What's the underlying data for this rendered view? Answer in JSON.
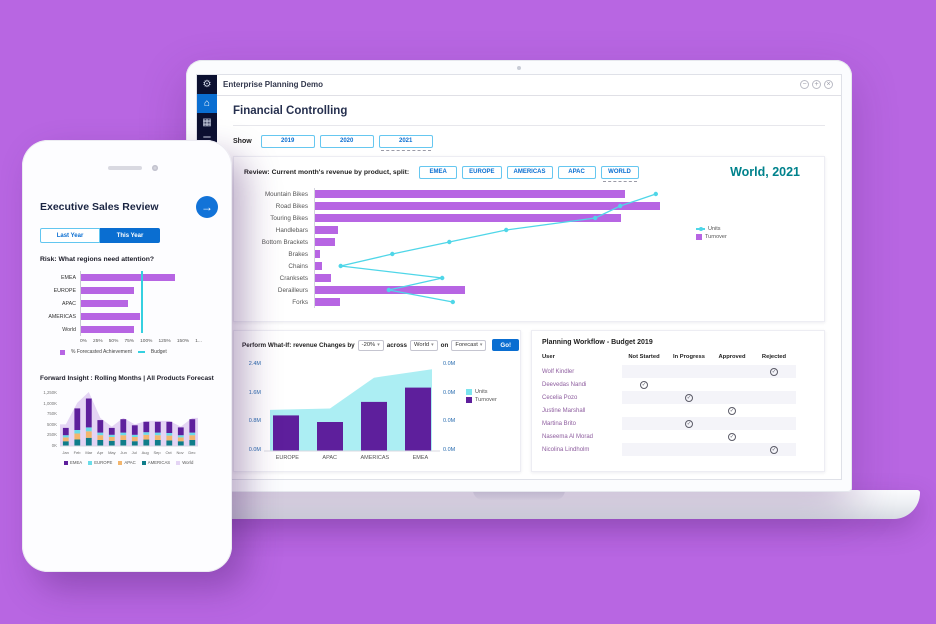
{
  "background_color": "#b866e2",
  "laptop": {
    "titlebar": {
      "title": "Enterprise Planning Demo",
      "controls": [
        {
          "name": "minimize-icon",
          "glyph": "−"
        },
        {
          "name": "maximize-icon",
          "glyph": "+"
        },
        {
          "name": "close-icon",
          "glyph": "×"
        }
      ]
    },
    "sidebar": {
      "icons": [
        {
          "name": "logo-gear-icon",
          "glyph": "⚙",
          "active": false
        },
        {
          "name": "home-icon",
          "glyph": "⌂",
          "active": true
        },
        {
          "name": "bar-chart-icon",
          "glyph": "▦",
          "active": false
        },
        {
          "name": "list-icon",
          "glyph": "☰",
          "active": false
        },
        {
          "name": "users-icon",
          "glyph": "◧",
          "active": false
        }
      ]
    },
    "page_title": "Financial Controlling",
    "show": {
      "label": "Show",
      "years": [
        "2019",
        "2020",
        "2021"
      ],
      "selected_year": "2021"
    },
    "review": {
      "label": "Review: Current month's revenue by product, split:",
      "regions": [
        "EMEA",
        "EUROPE",
        "AMERICAS",
        "APAC",
        "WORLD"
      ],
      "selected_region": "WORLD",
      "title": "World, 2021",
      "legend": [
        {
          "label": "Units",
          "color": "#4fd6e8",
          "marker": "line"
        },
        {
          "label": "Turnover",
          "color": "#b765e3",
          "marker": "square"
        }
      ]
    },
    "whatif": {
      "label": "Perform What-If: revenue Changes by",
      "change_value": "-20%",
      "across_label": "across",
      "across_value": "World",
      "on_label": "on",
      "on_value": "Forecast",
      "go_label": "Go!",
      "legend": [
        {
          "label": "Units",
          "color": "#7ce4ee"
        },
        {
          "label": "Turnover",
          "color": "#5e1f9c"
        }
      ]
    },
    "workflow": {
      "title": "Planning Workflow - Budget 2019",
      "columns": [
        "User",
        "Not Started",
        "In Progress",
        "Approved",
        "Rejected"
      ],
      "rows": [
        {
          "user": "Wolf Kindler",
          "status": "Rejected"
        },
        {
          "user": "Deevedas Nandi",
          "status": "Not Started"
        },
        {
          "user": "Cecelia Pozo",
          "status": "In Progress"
        },
        {
          "user": "Justine Marshall",
          "status": "Approved"
        },
        {
          "user": "Martina Brito",
          "status": "In Progress"
        },
        {
          "user": "Naseema Al Morad",
          "status": "Approved"
        },
        {
          "user": "Nicolina Lindholm",
          "status": "Rejected"
        }
      ]
    }
  },
  "phone": {
    "title": "Executive Sales Review",
    "nav_arrow_icon": "→",
    "toggle": [
      "Last Year",
      "This Year"
    ],
    "selected_toggle": "This Year",
    "risk_label": "Risk: What regions need attention?",
    "risk_legend": [
      {
        "label": "% Forecasted Achievement",
        "color": "#b765e3",
        "marker": "square"
      },
      {
        "label": "Budget",
        "color": "#35d0e0",
        "marker": "line"
      }
    ],
    "forward_label": "Forward Insight : Rolling Months | All Products Forecast"
  },
  "chart_data": [
    {
      "id": "review",
      "type": "bar",
      "orientation": "horizontal",
      "title": "World, 2021",
      "categories": [
        "Mountain Bikes",
        "Road Bikes",
        "Touring Bikes",
        "Handlebars",
        "Bottom Brackets",
        "Brakes",
        "Chains",
        "Cranksets",
        "Derailleurs",
        "Forks"
      ],
      "series": [
        {
          "name": "Turnover",
          "type": "bar",
          "color": "#b765e3",
          "values_pct_of_axis": [
            87,
            97,
            86,
            6.5,
            5.5,
            1.5,
            2,
            4.5,
            42,
            7
          ]
        },
        {
          "name": "Units",
          "type": "line",
          "color": "#4fd6e8",
          "values_pct_of_axis": [
            96,
            86,
            79,
            54,
            38,
            22,
            7.5,
            36,
            21,
            39
          ]
        }
      ],
      "legend_position": "right",
      "grid": false
    },
    {
      "id": "whatif",
      "type": "area",
      "categories": [
        "EUROPE",
        "APAC",
        "AMERICAS",
        "EMEA"
      ],
      "series": [
        {
          "name": "Units",
          "type": "area",
          "color": "#aceef3",
          "values_M": [
            1.12,
            1.16,
            2.0,
            2.23
          ]
        },
        {
          "name": "Turnover",
          "type": "bar",
          "color": "#5e1f9c",
          "values_M": [
            0.97,
            0.79,
            1.34,
            1.73
          ]
        }
      ],
      "y_left_ticks": [
        "2.4M",
        "1.6M",
        "0.8M",
        "0.0M"
      ],
      "y_right_ticks": [
        "0.0M",
        "0.0M",
        "0.0M",
        "0.0M"
      ],
      "ylim": [
        0,
        2.4
      ],
      "legend_position": "right",
      "grid": false
    },
    {
      "id": "risk",
      "type": "bar",
      "orientation": "horizontal",
      "categories": [
        "EMEA",
        "EUROPE",
        "APAC",
        "AMERICAS",
        "World"
      ],
      "values_pct": [
        140,
        78,
        70,
        88,
        78
      ],
      "budget_line_pct": 97,
      "x_ticks": [
        "0%",
        "25%",
        "50%",
        "75%",
        "100%",
        "125%",
        "150%",
        "1..."
      ],
      "xlim": [
        0,
        175
      ],
      "bar_color": "#b765e3",
      "grid": false
    },
    {
      "id": "forward",
      "type": "bar",
      "subtype": "stacked-with-area",
      "categories": [
        "Jan",
        "Feb",
        "Mar",
        "Apr",
        "May",
        "Jun",
        "Jul",
        "Aug",
        "Sep",
        "Oct",
        "Nov",
        "Dec"
      ],
      "series": [
        {
          "name": "AMERICAS",
          "color": "#0f7d8a",
          "values_K": [
            110,
            150,
            190,
            140,
            120,
            140,
            110,
            150,
            140,
            130,
            110,
            140
          ]
        },
        {
          "name": "APAC",
          "color": "#f3b66e",
          "values_K": [
            90,
            140,
            150,
            110,
            90,
            110,
            100,
            110,
            110,
            110,
            90,
            110
          ]
        },
        {
          "name": "EUROPE",
          "color": "#6adce8",
          "values_K": [
            50,
            80,
            90,
            60,
            50,
            60,
            50,
            60,
            60,
            60,
            50,
            60
          ]
        },
        {
          "name": "EMEA",
          "color": "#5e1f9c",
          "values_K": [
            170,
            500,
            670,
            290,
            160,
            310,
            220,
            240,
            250,
            260,
            180,
            310
          ]
        }
      ],
      "area_series": {
        "name": "World",
        "color": "#e4d4f4",
        "values_K": [
          500,
          1000,
          1250,
          650,
          450,
          650,
          500,
          580,
          580,
          580,
          450,
          650
        ]
      },
      "y_ticks": [
        "1,250K",
        "1,000K",
        "750K",
        "500K",
        "250K",
        "0K"
      ],
      "ylim": [
        0,
        1250
      ],
      "legend": [
        {
          "label": "EMEA",
          "color": "#5e1f9c"
        },
        {
          "label": "EUROPE",
          "color": "#6adce8"
        },
        {
          "label": "APAC",
          "color": "#f3b66e"
        },
        {
          "label": "AMERICAS",
          "color": "#0f7d8a"
        },
        {
          "label": "World",
          "color": "#e4d4f4"
        }
      ],
      "legend_position": "bottom",
      "grid": false
    }
  ]
}
